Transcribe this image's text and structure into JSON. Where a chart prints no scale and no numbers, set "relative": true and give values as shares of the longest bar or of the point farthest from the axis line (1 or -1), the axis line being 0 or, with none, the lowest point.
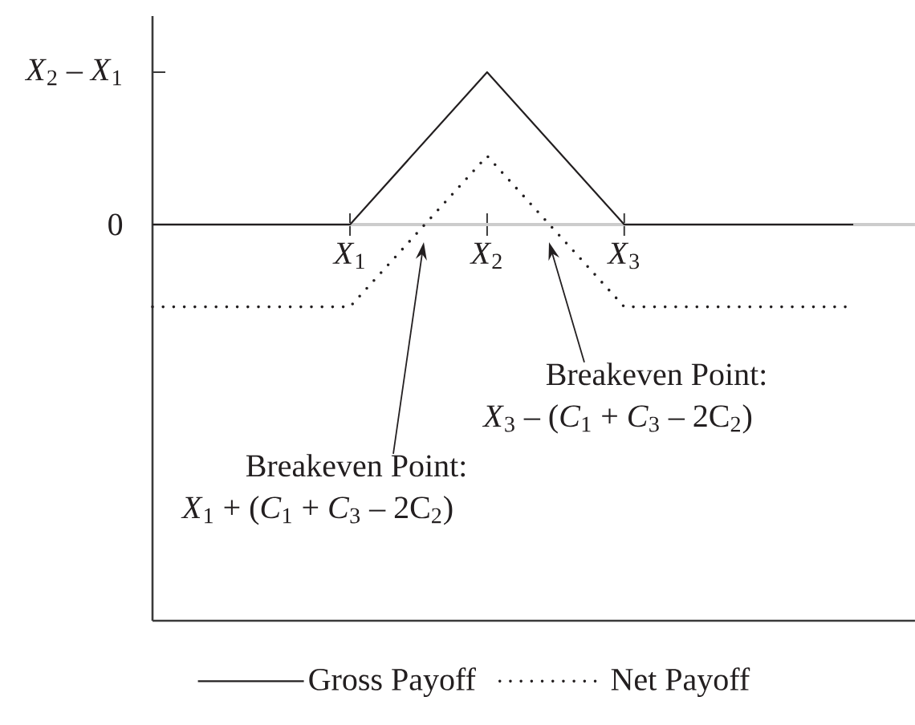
{
  "chart_data": {
    "type": "line",
    "relative": true,
    "xlim": [
      -0.44,
      5.12
    ],
    "xticks": [
      {
        "value": 1,
        "label": "*X*$_{1}$"
      },
      {
        "value": 2,
        "label": "*X*$_{2}$"
      },
      {
        "value": 3,
        "label": "*X*$_{3}$"
      }
    ],
    "series": [
      {
        "name": "Gross Payoff",
        "color": "#231f20",
        "line_style": "solid",
        "x": [
          -0.44,
          1,
          2,
          3,
          4.67
        ],
        "values": [
          0,
          0,
          1,
          0,
          0
        ]
      },
      {
        "name": "Net Payoff",
        "color": "#231f20",
        "line_style": "dotted",
        "x": [
          -0.44,
          1,
          2,
          3,
          4.67
        ],
        "values": [
          -0.54,
          -0.54,
          0.45,
          -0.54,
          -0.54
        ]
      }
    ],
    "annotations": [
      "*X*$_{2}$ – *X*$_{1}$",
      "0",
      "Breakeven Point:",
      "*X*$_{1}$ + (*C*$_{1}$ + *C*$_{3}$ – 2C$_{2}$)",
      "Breakeven Point:",
      "*X*$_{3}$ – (*C*$_{1}$ + *C*$_{3}$ – 2C$_{2}$)"
    ],
    "legend": "bottom",
    "marker": "none"
  }
}
